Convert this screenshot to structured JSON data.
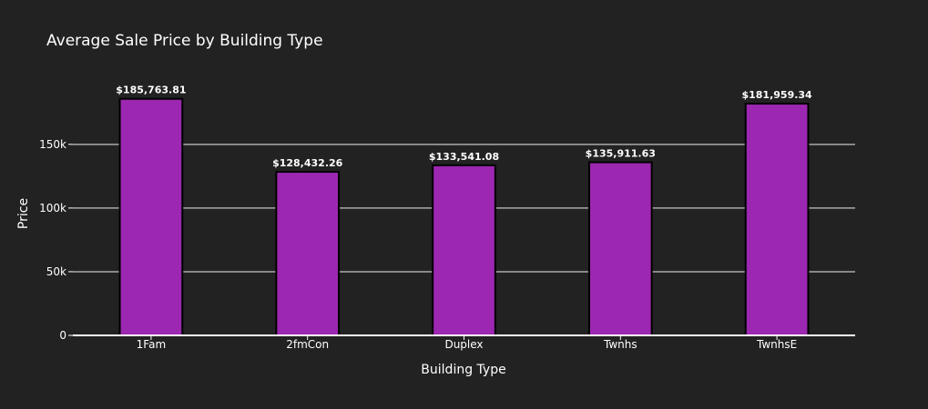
{
  "chart_data": {
    "type": "bar",
    "title": "Average Sale Price by Building Type",
    "xlabel": "Building Type",
    "ylabel": "Price",
    "categories": [
      "1Fam",
      "2fmCon",
      "Duplex",
      "Twnhs",
      "TwnhsE"
    ],
    "values": [
      185763.81,
      128432.26,
      133541.08,
      135911.63,
      181959.34
    ],
    "data_labels": [
      "$185,763.81",
      "$128,432.26",
      "$133,541.08",
      "$135,911.63",
      "$181,959.34"
    ],
    "yticks": [
      0,
      50000,
      100000,
      150000
    ],
    "ytick_labels": [
      "0",
      "50k",
      "100k",
      "150k"
    ],
    "ylim": [
      0,
      195542
    ],
    "grid": true,
    "colors": {
      "bar": "#9c27b0",
      "bar_outline": "#000000",
      "background": "#222222",
      "grid": "#aaaaaa",
      "text": "#ffffff"
    }
  }
}
